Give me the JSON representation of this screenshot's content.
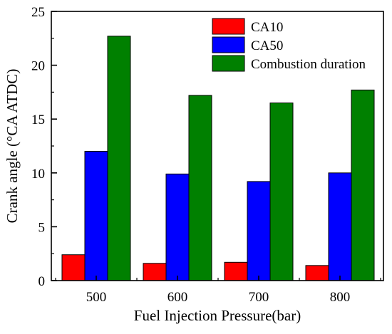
{
  "chart_data": {
    "type": "bar",
    "title": "",
    "xlabel": "Fuel Injection Pressure(bar)",
    "ylabel": "Crank angle (°CA ATDC)",
    "categories": [
      "500",
      "600",
      "700",
      "800"
    ],
    "series": [
      {
        "name": "CA10",
        "color": "#ff0000",
        "values": [
          2.4,
          1.6,
          1.7,
          1.4
        ]
      },
      {
        "name": "CA50",
        "color": "#0000ff",
        "values": [
          12.0,
          9.9,
          9.2,
          10.0
        ]
      },
      {
        "name": "Combustion duration",
        "color": "#008000",
        "values": [
          22.7,
          17.2,
          16.5,
          17.7
        ]
      }
    ],
    "ylim": [
      0,
      25
    ],
    "yticks": [
      0,
      5,
      10,
      15,
      20,
      25
    ],
    "grid": false,
    "legend_position": "top-right"
  }
}
